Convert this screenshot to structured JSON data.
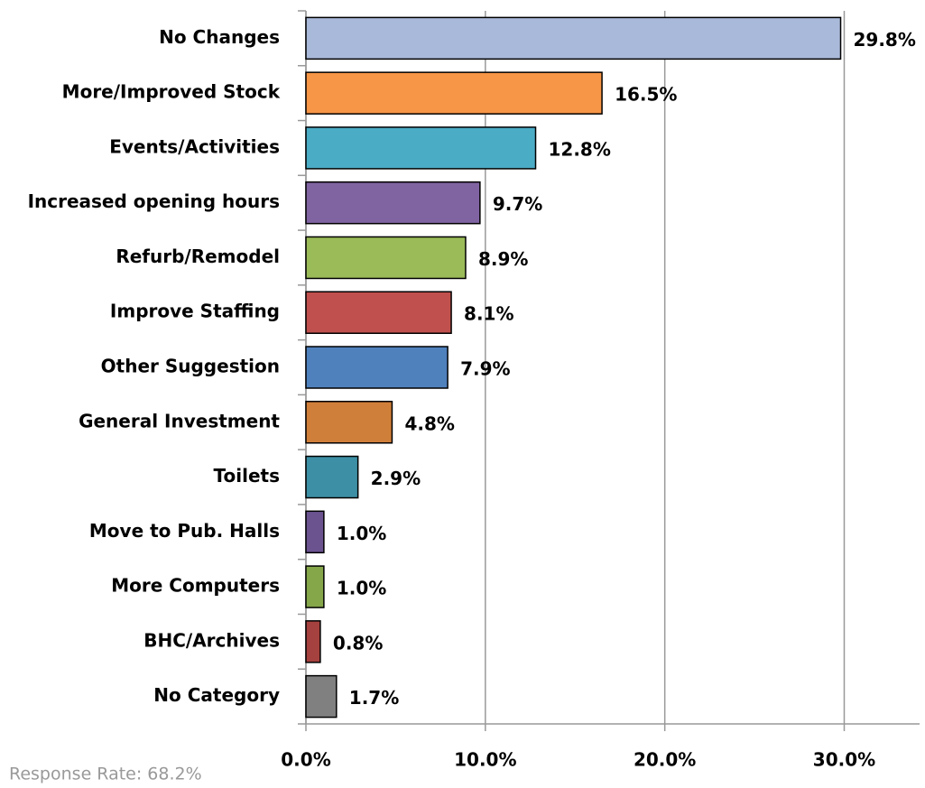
{
  "chart_data": {
    "type": "bar",
    "orientation": "horizontal",
    "categories": [
      "No Changes",
      "More/Improved Stock",
      "Events/Activities",
      "Increased opening hours",
      "Refurb/Remodel",
      "Improve Staffing",
      "Other Suggestion",
      "General Investment",
      "Toilets",
      "Move to Pub. Halls",
      "More Computers",
      "BHC/Archives",
      "No Category"
    ],
    "values": [
      29.8,
      16.5,
      12.8,
      9.7,
      8.9,
      8.1,
      7.9,
      4.8,
      2.9,
      1.0,
      1.0,
      0.8,
      1.7
    ],
    "value_labels": [
      "29.8%",
      "16.5%",
      "12.8%",
      "9.7%",
      "8.9%",
      "8.1%",
      "7.9%",
      "4.8%",
      "2.9%",
      "1.0%",
      "1.0%",
      "0.8%",
      "1.7%"
    ],
    "colors": [
      "#a9b9d9",
      "#f79646",
      "#4bacc6",
      "#8064a2",
      "#9bbb59",
      "#c0504d",
      "#4f81bd",
      "#d07f3a",
      "#3d8fa5",
      "#6b5390",
      "#86a64a",
      "#a5413e",
      "#808080"
    ],
    "xlim": [
      0,
      34.2
    ],
    "xticks": [
      {
        "value": 0,
        "label": "0.0%"
      },
      {
        "value": 10,
        "label": "10.0%"
      },
      {
        "value": 20,
        "label": "20.0%"
      },
      {
        "value": 30,
        "label": "30.0%"
      }
    ],
    "grid": true,
    "annotation": "Response Rate: 68.2%"
  }
}
